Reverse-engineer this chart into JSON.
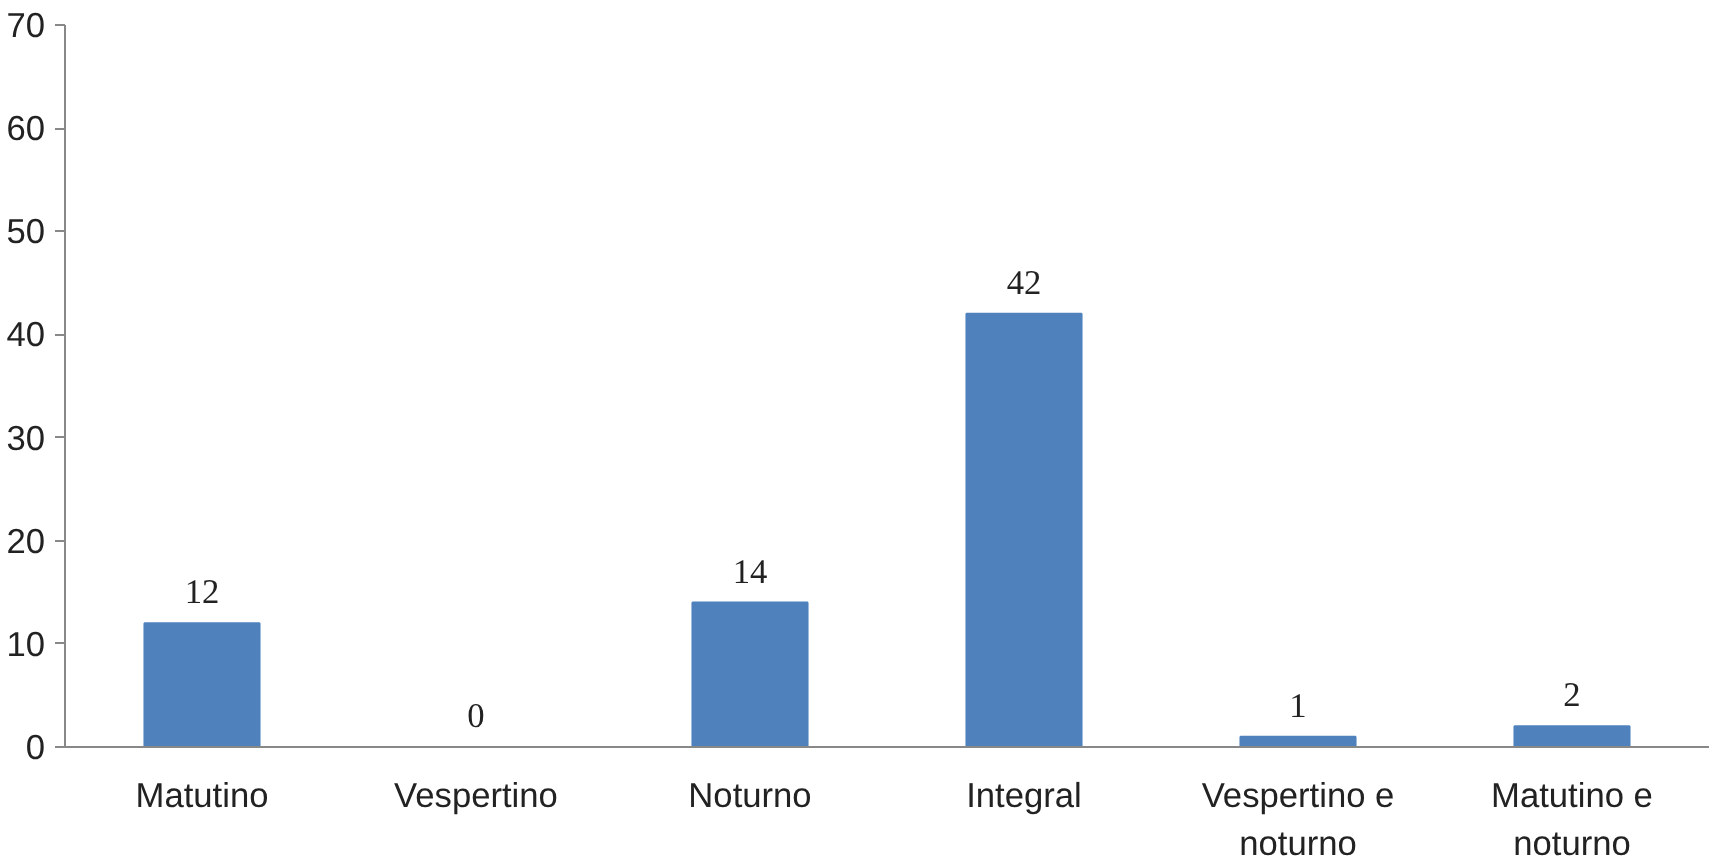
{
  "chart_data": {
    "type": "bar",
    "categories": [
      "Matutino",
      "Vespertino",
      "Noturno",
      "Integral",
      "Vespertino e noturno",
      "Matutino e noturno"
    ],
    "values": [
      12,
      0,
      14,
      42,
      1,
      2
    ],
    "color": "#4f81bd",
    "ylim": [
      0,
      70
    ],
    "yticks": [
      0,
      10,
      20,
      30,
      40,
      50,
      60,
      70
    ],
    "grid": false,
    "data_labels": true
  }
}
